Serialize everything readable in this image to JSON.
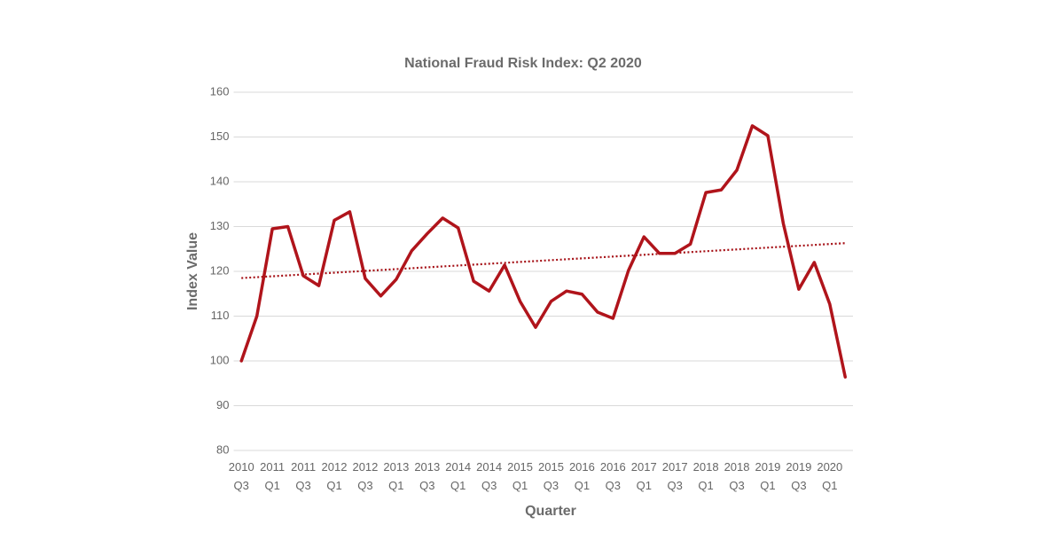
{
  "chart_data": {
    "type": "line",
    "title": "National Fraud Risk Index: Q2 2020",
    "x_label": "Quarter",
    "y_label": "Index Value",
    "categories": [
      "2010 Q3",
      null,
      "2011 Q1",
      null,
      "2011 Q3",
      null,
      "2012 Q1",
      null,
      "2012 Q3",
      null,
      "2013 Q1",
      null,
      "2013 Q3",
      null,
      "2014 Q1",
      null,
      "2014 Q3",
      null,
      "2015 Q1",
      null,
      "2015 Q3",
      null,
      "2016 Q1",
      null,
      "2016 Q3",
      null,
      "2017 Q1",
      null,
      "2017 Q3",
      null,
      "2018 Q1",
      null,
      "2018 Q3",
      null,
      "2019 Q1",
      null,
      "2019 Q3",
      null,
      "2020 Q1",
      null
    ],
    "series": [
      {
        "color": "#b0141b",
        "values": [
          100,
          110,
          129.5,
          130,
          119,
          116.8,
          131.4,
          133.3,
          118.4,
          114.5,
          118.2,
          124.6,
          128.4,
          131.9,
          129.7,
          117.8,
          115.6,
          121.4,
          113.3,
          107.5,
          113.3,
          115.6,
          114.9,
          110.9,
          109.5,
          120.2,
          127.7,
          124,
          124,
          126.1,
          137.6,
          138.2,
          142.6,
          152.5,
          150.3,
          130.7,
          116,
          122,
          112.7,
          96.4
        ]
      }
    ],
    "trendline": {
      "color": "#a50f15",
      "style": "dotted",
      "values": [
        118.5,
        126.3
      ]
    },
    "ylim": [
      80,
      160
    ],
    "yticks": [
      80,
      90,
      100,
      110,
      120,
      130,
      140,
      150,
      160
    ],
    "grid": true
  }
}
